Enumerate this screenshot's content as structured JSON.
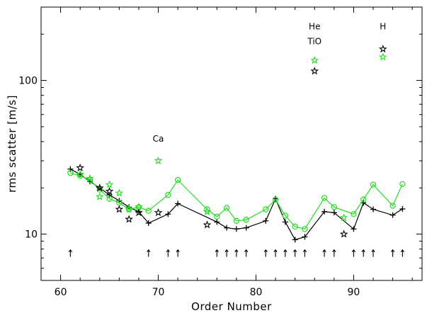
{
  "chart_data": {
    "type": "line",
    "title": "",
    "xlabel": "Order Number",
    "ylabel": "rms scatter [m/s]",
    "xlim": [
      58,
      97
    ],
    "ylim": [
      5,
      300
    ],
    "y_scale": "log",
    "x_ticks": [
      60,
      70,
      80,
      90
    ],
    "x_tick_labels": [
      "60",
      "70",
      "80",
      "90"
    ],
    "y_ticks": [
      10,
      100
    ],
    "y_tick_labels": [
      "10",
      "100"
    ],
    "grid": false,
    "colors": {
      "black": "#000000",
      "green": "#22dd22"
    },
    "series": [
      {
        "marker": "plus",
        "color": "#000000",
        "line": true,
        "x": [
          61,
          62,
          63,
          64,
          65,
          66,
          67,
          68,
          69,
          71,
          72,
          76,
          77,
          78,
          79,
          81,
          82,
          83,
          84,
          85,
          87,
          88,
          90,
          91,
          92,
          94,
          95
        ],
        "y": [
          26.5,
          24.5,
          22.0,
          20.0,
          18.0,
          16.5,
          15.0,
          14.0,
          11.8,
          13.5,
          15.8,
          12.0,
          11.0,
          10.8,
          11.0,
          12.2,
          17.0,
          12.0,
          9.2,
          9.6,
          14.0,
          13.8,
          10.8,
          16.0,
          14.5,
          13.3,
          14.6
        ]
      },
      {
        "marker": "circle",
        "color": "#22dd22",
        "line": true,
        "x": [
          61,
          62,
          63,
          64,
          65,
          66,
          67,
          68,
          69,
          71,
          72,
          75,
          76,
          77,
          78,
          79,
          81,
          82,
          83,
          84,
          85,
          87,
          88,
          90,
          91,
          92,
          94,
          95
        ],
        "y": [
          25.0,
          24.0,
          22.5,
          19.5,
          17.0,
          16.0,
          14.5,
          15.0,
          14.2,
          18.0,
          22.5,
          14.5,
          13.0,
          14.8,
          12.2,
          12.4,
          14.5,
          16.8,
          13.2,
          11.2,
          10.8,
          17.2,
          15.0,
          13.5,
          16.8,
          21.0,
          15.3,
          21.2
        ]
      },
      {
        "marker": "star",
        "color": "#000000",
        "line": false,
        "x": [
          62,
          64,
          65,
          66,
          67,
          68,
          70,
          75,
          86,
          89,
          93
        ],
        "y": [
          27.0,
          20.0,
          19.0,
          14.5,
          12.5,
          13.8,
          13.8,
          11.5,
          115,
          10.0,
          160
        ],
        "points": 11
      },
      {
        "marker": "star",
        "color": "#22dd22",
        "line": false,
        "x": [
          62,
          63,
          64,
          65,
          66,
          67,
          68,
          70,
          75,
          86,
          89,
          93
        ],
        "y": [
          24.5,
          23.0,
          17.5,
          21.0,
          18.5,
          14.5,
          15.0,
          30.0,
          14.0,
          135,
          12.8,
          142
        ],
        "points": 12
      }
    ],
    "arrow_markers": {
      "y": 7.5,
      "x": [
        61,
        69,
        71,
        72,
        76,
        77,
        78,
        79,
        81,
        82,
        83,
        84,
        85,
        87,
        88,
        90,
        91,
        92,
        94,
        95
      ]
    },
    "annotations": [
      {
        "text": "Ca",
        "x": 70,
        "y": 40
      },
      {
        "text": "He",
        "x": 86,
        "y": 215
      },
      {
        "text": "TiO",
        "x": 86,
        "y": 172
      },
      {
        "text": "H",
        "x": 93,
        "y": 215
      }
    ]
  }
}
